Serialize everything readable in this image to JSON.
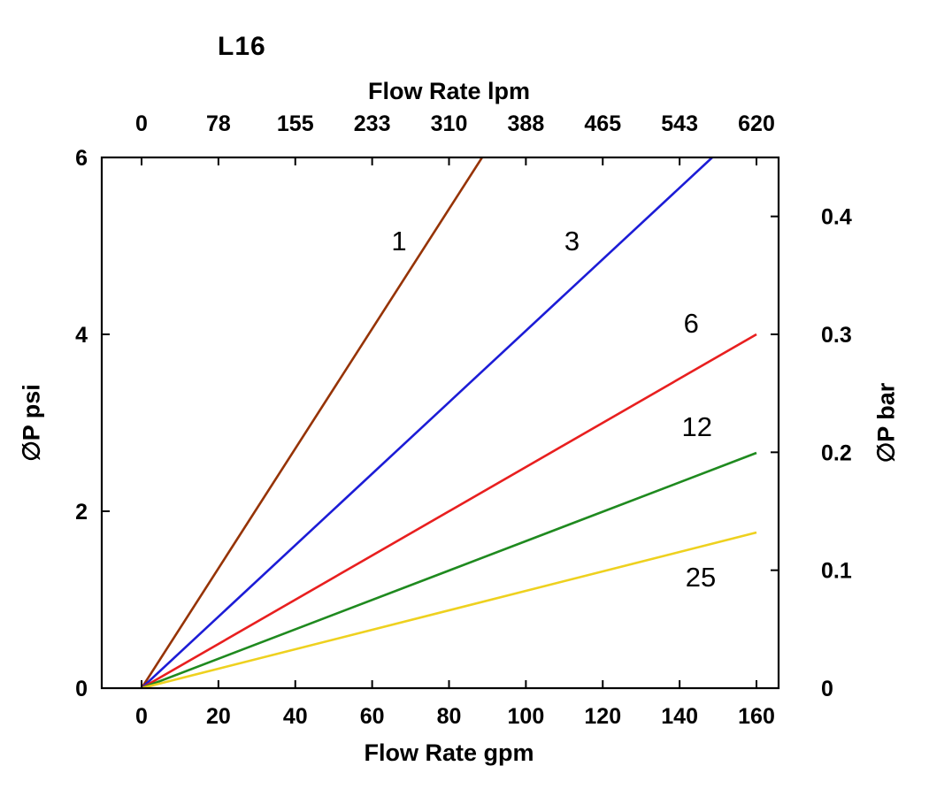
{
  "chart_data": {
    "type": "line",
    "title": "L16",
    "x_bottom": {
      "label": "Flow Rate gpm",
      "range": [
        0,
        160
      ],
      "ticks": [
        0,
        20,
        40,
        60,
        80,
        100,
        120,
        140,
        160
      ]
    },
    "x_top": {
      "label": "Flow Rate lpm",
      "range": [
        0,
        620
      ],
      "ticks": [
        0,
        78,
        155,
        233,
        310,
        388,
        465,
        543,
        620
      ]
    },
    "y_left": {
      "label": "∅P psi",
      "range": [
        0,
        6
      ],
      "ticks": [
        0,
        2,
        4,
        6
      ]
    },
    "y_right": {
      "label": "∅P bar",
      "range": [
        0,
        0.45
      ],
      "ticks": [
        0,
        0.1,
        0.2,
        0.3,
        0.4
      ]
    },
    "grid": false,
    "legend": "inline-labels",
    "series": [
      {
        "name": "1",
        "color": "#963305",
        "points": [
          [
            0,
            0
          ],
          [
            88.6,
            6
          ]
        ],
        "label_pos": [
          67,
          5.05
        ]
      },
      {
        "name": "3",
        "color": "#1c1cd6",
        "points": [
          [
            0,
            0
          ],
          [
            148.5,
            6
          ]
        ],
        "label_pos": [
          112,
          5.05
        ]
      },
      {
        "name": "6",
        "color": "#e81f1f",
        "points": [
          [
            0,
            0
          ],
          [
            160,
            4.0
          ]
        ],
        "label_pos": [
          143,
          4.12
        ]
      },
      {
        "name": "12",
        "color": "#1f8a1f",
        "points": [
          [
            0,
            0
          ],
          [
            160,
            2.66
          ]
        ],
        "label_pos": [
          144.5,
          2.95
        ]
      },
      {
        "name": "25",
        "color": "#eed11f",
        "points": [
          [
            0,
            0
          ],
          [
            160,
            1.76
          ]
        ],
        "label_pos": [
          145.5,
          1.25
        ]
      }
    ]
  }
}
